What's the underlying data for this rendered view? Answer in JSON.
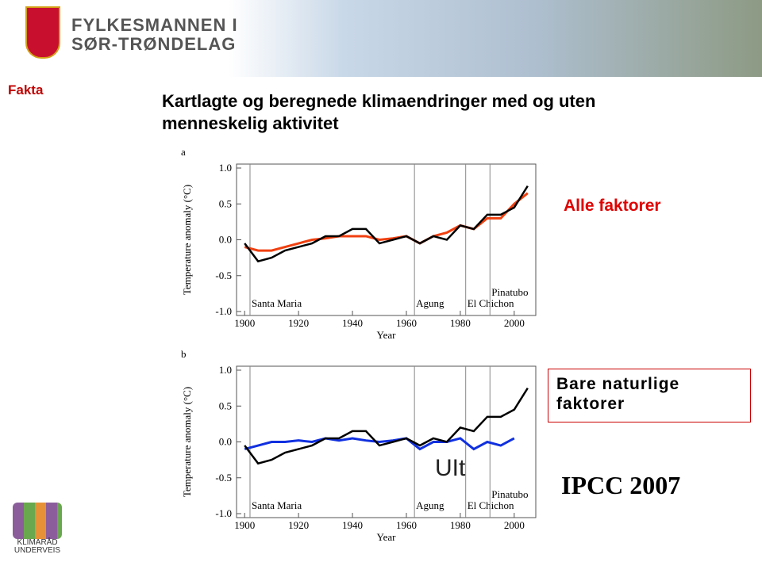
{
  "header": {
    "org_line1": "FYLKESMANNEN I",
    "org_line2": "SØR-TRØNDELAG"
  },
  "section": "Fakta",
  "title": "Kartlagte og beregnede klimaendringer med og uten menneskelig aktivitet",
  "label_all": "Alle faktorer",
  "label_natural": "Bare naturlige faktorer",
  "source": "IPCC 2007",
  "watermark": "UIt",
  "footer_logo": {
    "line1": "KLIMARÅD",
    "line2": "UNDERVEIS"
  },
  "chart_data": [
    {
      "type": "line",
      "panel": "a",
      "x_label": "Year",
      "y_label": "Temperature anomaly (°C)",
      "xlim": [
        1897,
        2008
      ],
      "ylim": [
        -1,
        1
      ],
      "xticks": [
        1900,
        1920,
        1940,
        1960,
        1980,
        2000
      ],
      "yticks": [
        {
          "value": -1,
          "label": "-1.0"
        },
        {
          "value": -0.5,
          "label": "-0.5"
        },
        {
          "value": 0,
          "label": "0.0"
        },
        {
          "value": 0.5,
          "label": "0.5"
        },
        {
          "value": 1,
          "label": "1.0"
        }
      ],
      "x": [
        1900,
        1905,
        1910,
        1915,
        1920,
        1925,
        1930,
        1935,
        1940,
        1945,
        1950,
        1955,
        1960,
        1965,
        1970,
        1975,
        1980,
        1985,
        1990,
        1995,
        2000,
        2005
      ],
      "series": [
        {
          "color": "#f04010",
          "values": [
            -0.1,
            -0.15,
            -0.15,
            -0.1,
            -0.05,
            0.0,
            0.02,
            0.05,
            0.05,
            0.05,
            0.0,
            0.02,
            0.05,
            -0.05,
            0.05,
            0.1,
            0.2,
            0.15,
            0.3,
            0.3,
            0.5,
            0.65
          ]
        },
        {
          "color": "#000000",
          "values": [
            -0.05,
            -0.3,
            -0.25,
            -0.15,
            -0.1,
            -0.05,
            0.05,
            0.05,
            0.15,
            0.15,
            -0.05,
            0.0,
            0.05,
            -0.05,
            0.05,
            0.0,
            0.2,
            0.15,
            0.35,
            0.35,
            0.45,
            0.75
          ]
        }
      ],
      "annotations": [
        {
          "text": "Santa Maria",
          "x": 1902
        },
        {
          "text": "Agung",
          "x": 1963
        },
        {
          "text": "El Chichon",
          "x": 1982
        },
        {
          "text": "Pinatubo",
          "x": 1991
        }
      ]
    },
    {
      "type": "line",
      "panel": "b",
      "x_label": "Year",
      "y_label": "Temperature anomaly (°C)",
      "xlim": [
        1897,
        2008
      ],
      "ylim": [
        -1,
        1
      ],
      "xticks": [
        1900,
        1920,
        1940,
        1960,
        1980,
        2000
      ],
      "yticks": [
        {
          "value": -1,
          "label": "-1.0"
        },
        {
          "value": -0.5,
          "label": "-0.5"
        },
        {
          "value": 0,
          "label": "0.0"
        },
        {
          "value": 0.5,
          "label": "0.5"
        },
        {
          "value": 1,
          "label": "1.0"
        }
      ],
      "x": [
        1900,
        1905,
        1910,
        1915,
        1920,
        1925,
        1930,
        1935,
        1940,
        1945,
        1950,
        1955,
        1960,
        1965,
        1970,
        1975,
        1980,
        1985,
        1990,
        1995,
        2000,
        2005
      ],
      "series": [
        {
          "color": "#1030e0",
          "values": [
            -0.1,
            -0.05,
            0.0,
            0.0,
            0.02,
            0.0,
            0.05,
            0.02,
            0.05,
            0.02,
            0.0,
            0.02,
            0.05,
            -0.1,
            0.0,
            0.0,
            0.05,
            -0.1,
            0.0,
            -0.05,
            0.05,
            null
          ]
        },
        {
          "color": "#000000",
          "values": [
            -0.05,
            -0.3,
            -0.25,
            -0.15,
            -0.1,
            -0.05,
            0.05,
            0.05,
            0.15,
            0.15,
            -0.05,
            0.0,
            0.05,
            -0.05,
            0.05,
            0.0,
            0.2,
            0.15,
            0.35,
            0.35,
            0.45,
            0.75
          ]
        }
      ],
      "annotations": [
        {
          "text": "Santa Maria",
          "x": 1902
        },
        {
          "text": "Agung",
          "x": 1963
        },
        {
          "text": "El Chichon",
          "x": 1982
        },
        {
          "text": "Pinatubo",
          "x": 1991
        }
      ]
    }
  ]
}
